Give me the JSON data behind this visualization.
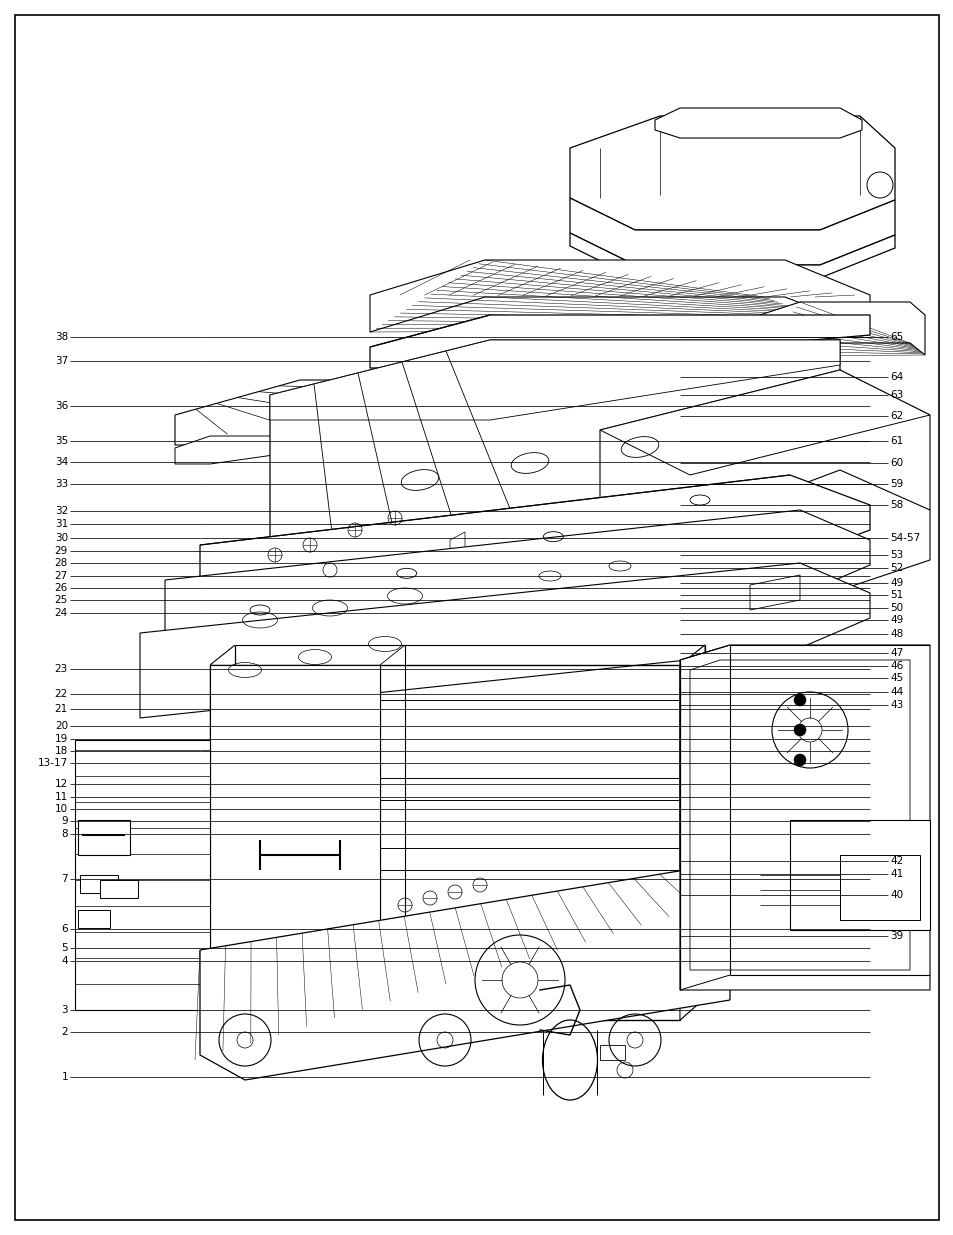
{
  "bg": "#ffffff",
  "lc": "#000000",
  "fig_w": 9.54,
  "fig_h": 12.35,
  "dpi": 100,
  "left_labels": [
    [
      "1",
      0.872
    ],
    [
      "2",
      0.836
    ],
    [
      "3",
      0.8175
    ],
    [
      "4",
      0.778
    ],
    [
      "5",
      0.768
    ],
    [
      "6",
      0.752
    ],
    [
      "7",
      0.712
    ],
    [
      "8",
      0.675
    ],
    [
      "9",
      0.665
    ],
    [
      "10",
      0.655
    ],
    [
      "11",
      0.645
    ],
    [
      "12",
      0.635
    ],
    [
      "13-17",
      0.618
    ],
    [
      "18",
      0.608
    ],
    [
      "19",
      0.598
    ],
    [
      "20",
      0.588
    ],
    [
      "21",
      0.574
    ],
    [
      "22",
      0.562
    ],
    [
      "23",
      0.542
    ],
    [
      "24",
      0.496
    ],
    [
      "25",
      0.4855
    ],
    [
      "26",
      0.476
    ],
    [
      "27",
      0.466
    ],
    [
      "28",
      0.456
    ],
    [
      "29",
      0.446
    ],
    [
      "30",
      0.436
    ],
    [
      "31",
      0.424
    ],
    [
      "32",
      0.414
    ],
    [
      "33",
      0.392
    ],
    [
      "34",
      0.374
    ],
    [
      "35",
      0.357
    ],
    [
      "36",
      0.329
    ],
    [
      "37",
      0.292
    ],
    [
      "38",
      0.273
    ]
  ],
  "right_labels": [
    [
      "39",
      0.758
    ],
    [
      "40",
      0.725
    ],
    [
      "41",
      0.708
    ],
    [
      "42",
      0.697
    ],
    [
      "43",
      0.571
    ],
    [
      "44",
      0.56
    ],
    [
      "45",
      0.549
    ],
    [
      "46",
      0.539
    ],
    [
      "47",
      0.529
    ],
    [
      "48",
      0.513
    ],
    [
      "49",
      0.502
    ],
    [
      "50",
      0.492
    ],
    [
      "51",
      0.482
    ],
    [
      "49",
      0.472
    ],
    [
      "52",
      0.46
    ],
    [
      "53",
      0.449
    ],
    [
      "54-57",
      0.436
    ],
    [
      "58",
      0.409
    ],
    [
      "59",
      0.392
    ],
    [
      "60",
      0.375
    ],
    [
      "61",
      0.357
    ],
    [
      "62",
      0.337
    ],
    [
      "63",
      0.32
    ],
    [
      "64",
      0.305
    ],
    [
      "65",
      0.273
    ]
  ]
}
